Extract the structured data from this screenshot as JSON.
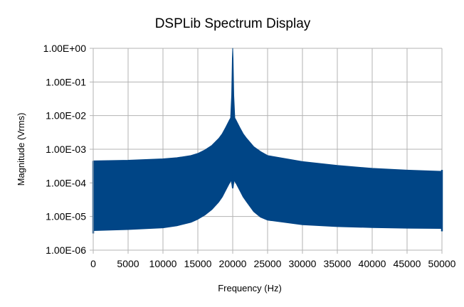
{
  "chart_data": {
    "type": "area",
    "title": "DSPLib Spectrum Display",
    "xlabel": "Frequency (Hz)",
    "ylabel": "Magnitude (Vrms)",
    "xlim": [
      0,
      50000
    ],
    "ylim": [
      1e-06,
      1
    ],
    "y_scale": "log",
    "grid": true,
    "legend": "none",
    "x_ticks": [
      "0",
      "5000",
      "10000",
      "15000",
      "20000",
      "25000",
      "30000",
      "35000",
      "40000",
      "45000",
      "50000"
    ],
    "y_ticks": [
      "1.00E-06",
      "1.00E-05",
      "1.00E-04",
      "1.00E-03",
      "1.00E-02",
      "1.00E-01",
      "1.00E+00"
    ],
    "series": [
      {
        "color": "#004586",
        "upper_envelope": {
          "x": [
            0,
            5000,
            10000,
            12000,
            14000,
            15000,
            16000,
            17000,
            18000,
            18500,
            19000,
            19500,
            19700,
            19850,
            19950,
            20000,
            20050,
            20150,
            20300,
            20500,
            21000,
            21500,
            22000,
            23000,
            24000,
            25000,
            30000,
            35000,
            40000,
            45000,
            50000
          ],
          "y": [
            0.00045,
            0.00047,
            0.00052,
            0.00056,
            0.00065,
            0.00075,
            0.00095,
            0.0013,
            0.0021,
            0.0029,
            0.0045,
            0.0072,
            0.0085,
            0.04,
            0.5,
            1.0,
            0.5,
            0.04,
            0.0085,
            0.0072,
            0.0045,
            0.0029,
            0.0021,
            0.0012,
            0.00085,
            0.00065,
            0.00043,
            0.00033,
            0.00027,
            0.00024,
            0.00022
          ]
        },
        "lower_envelope": {
          "x": [
            0,
            5000,
            10000,
            12000,
            14000,
            15000,
            16000,
            17000,
            18000,
            18500,
            19000,
            19500,
            19800,
            19950,
            20000,
            20050,
            20200,
            20500,
            21000,
            21500,
            22000,
            23000,
            24000,
            25000,
            30000,
            35000,
            40000,
            45000,
            50000
          ],
          "y": [
            3.8e-06,
            4.1e-06,
            4.6e-06,
            5.3e-06,
            6.7e-06,
            8.3e-06,
            1.1e-05,
            1.6e-05,
            2.7e-05,
            3.8e-05,
            6e-05,
            9.5e-05,
            0.00012,
            7e-05,
            0.0003,
            7e-05,
            0.00012,
            9.5e-05,
            6e-05,
            3.8e-05,
            2.7e-05,
            1.4e-05,
            9.5e-06,
            7.8e-06,
            5.7e-06,
            5e-06,
            4.7e-06,
            4.5e-06,
            4.4e-06
          ]
        }
      }
    ]
  }
}
